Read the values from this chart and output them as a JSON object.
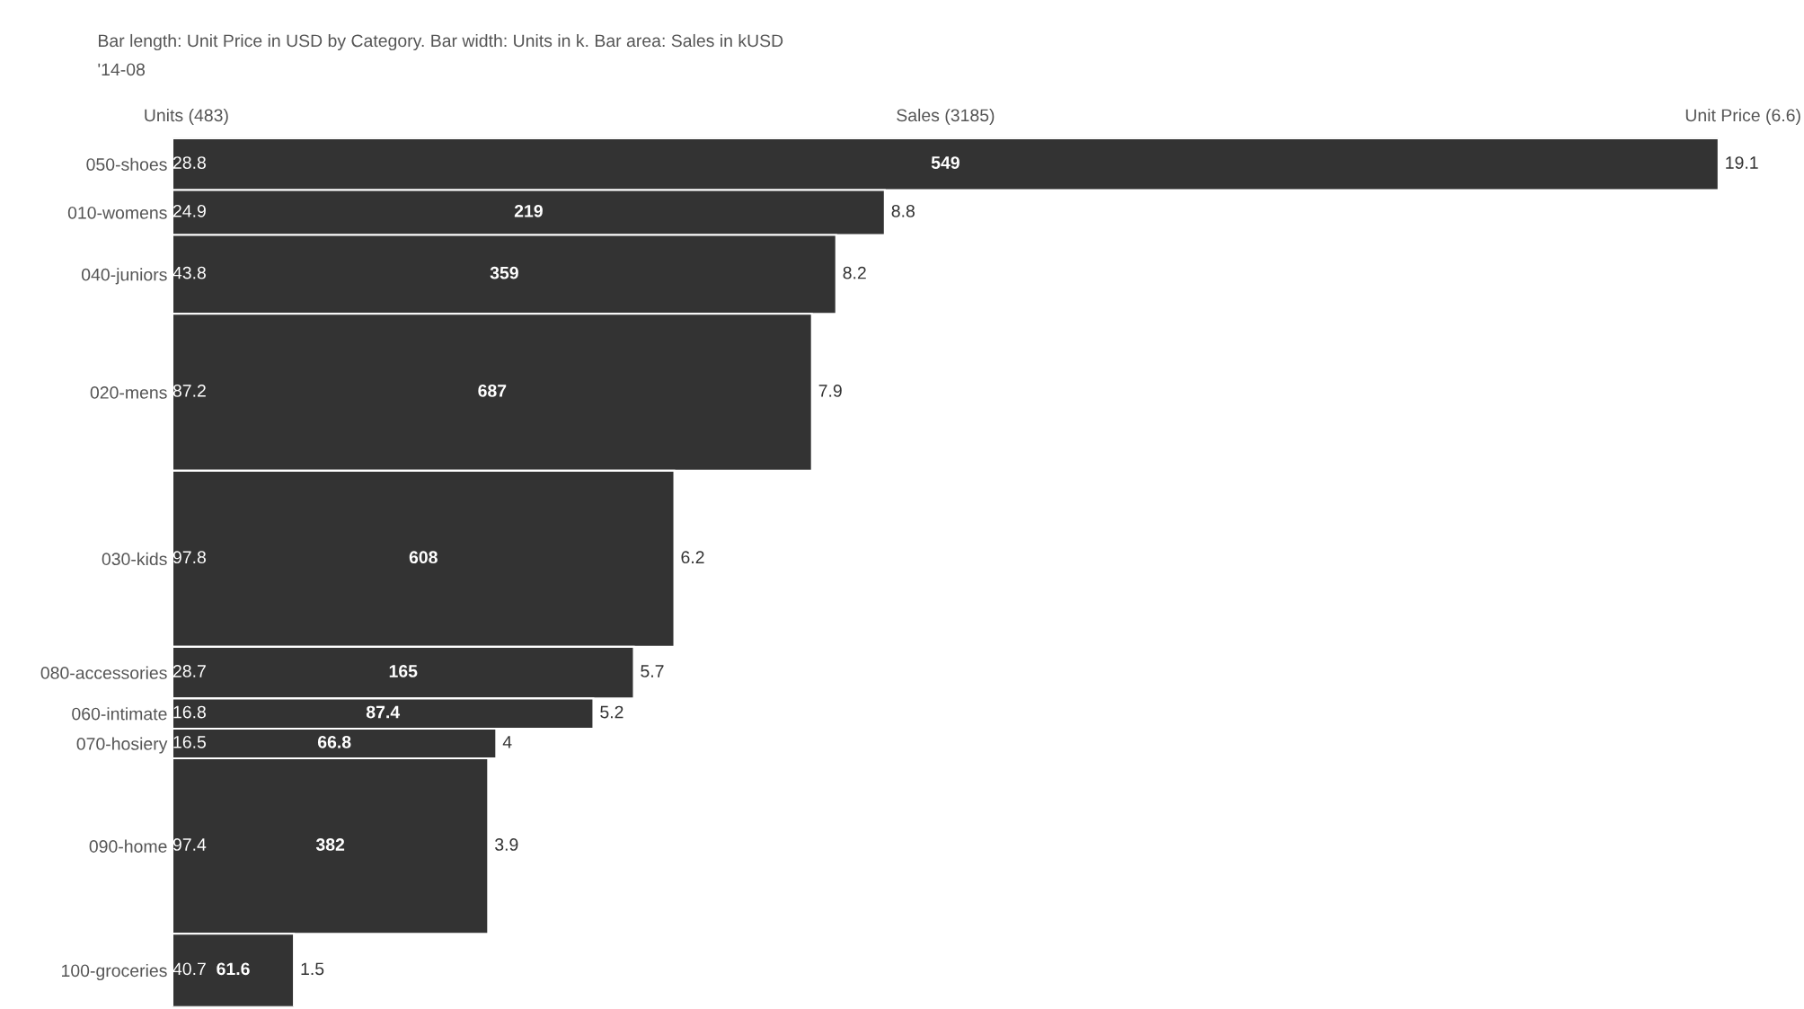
{
  "chart_data": {
    "type": "bar",
    "orientation": "horizontal",
    "title": "Bar length: Unit Price in USD by Category. Bar width: Units in k. Bar area: Sales in kUSD",
    "subtitle": "'14-08",
    "categories": [
      "050-shoes",
      "010-womens",
      "040-juniors",
      "020-mens",
      "030-kids",
      "080-accessories",
      "060-intimate",
      "070-hosiery",
      "090-home",
      "100-groceries"
    ],
    "values": [
      19.1,
      8.8,
      8.2,
      7.9,
      6.2,
      5.7,
      5.2,
      4,
      3.9,
      1.5
    ],
    "color": "#333333",
    "data_labels": true,
    "annotations": [
      "Units (483)",
      "Sales (3185)",
      "Unit Price (6.6)",
      "28.8",
      "24.9",
      "43.8",
      "87.2",
      "97.8",
      "28.7",
      "16.8",
      "16.5",
      "97.4",
      "40.7",
      "549",
      "219",
      "359",
      "687",
      "608",
      "165",
      "87.4",
      "66.8",
      "382",
      "61.6"
    ]
  }
}
